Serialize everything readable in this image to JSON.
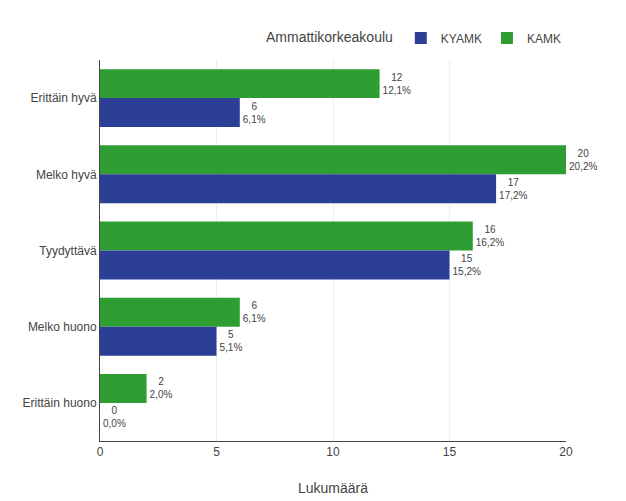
{
  "chart_data": {
    "type": "bar",
    "orientation": "horizontal",
    "categories": [
      "Erittäin hyvä",
      "Melko hyvä",
      "Tyydyttävä",
      "Melko huono",
      "Erittäin huono"
    ],
    "series": [
      {
        "name": "KAMK",
        "color": "#2e9e32",
        "values": [
          12,
          20,
          16,
          6,
          2
        ],
        "value_labels": [
          "12\n12,1%",
          "20\n20,2%",
          "16\n16,2%",
          "6\n6,1%",
          "2\n2,0%"
        ]
      },
      {
        "name": "KYAMK",
        "color": "#2b3f96",
        "values": [
          6,
          17,
          15,
          5,
          0
        ],
        "value_labels": [
          "6\n6,1%",
          "17\n17,2%",
          "15\n15,2%",
          "5\n5,1%",
          "0\n0,0%"
        ]
      }
    ],
    "xlabel": "Lukumäärä",
    "legend_title": "Ammattikorkeakoulu",
    "legend": "upper right",
    "xlim": [
      0,
      20
    ],
    "xticks": [
      0,
      5,
      10,
      15,
      20
    ],
    "grid": true,
    "data_labels": true
  }
}
